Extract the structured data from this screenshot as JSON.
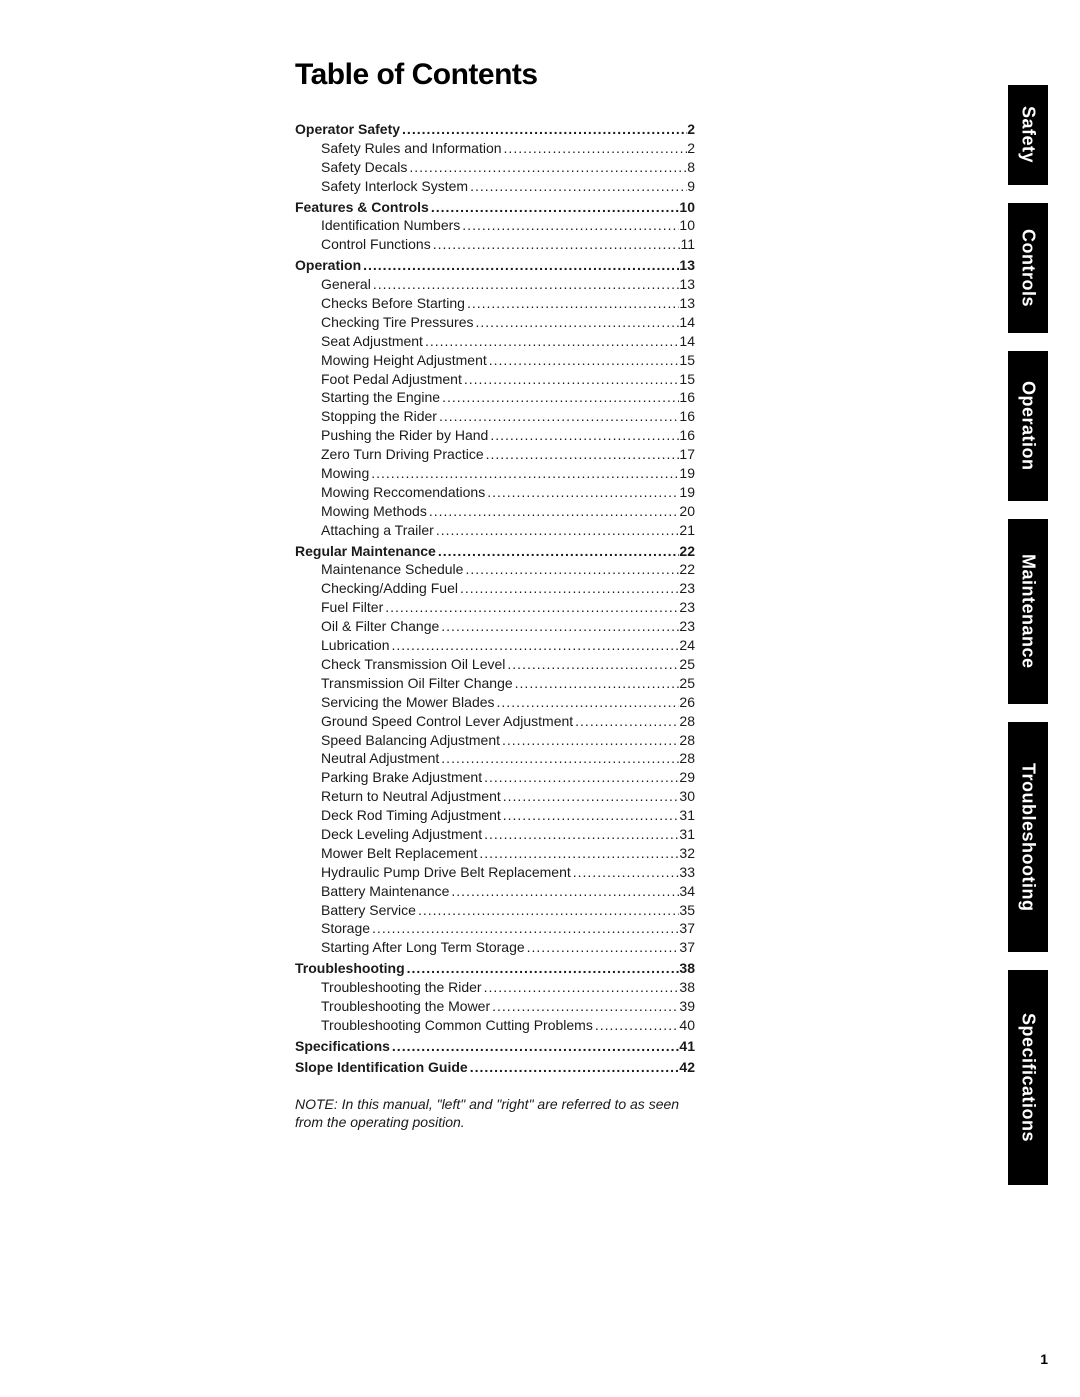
{
  "title": "Table of Contents",
  "note": "NOTE: In this manual, \"left\" and \"right\" are referred to as seen from the operating position.",
  "page_number": "1",
  "tabs": [
    "Safety",
    "Controls",
    "Operation",
    "Maintenance",
    "Troubleshooting",
    "Specifications"
  ],
  "tab_heights": [
    100,
    130,
    150,
    185,
    230,
    215
  ],
  "colors": {
    "tab_bg": "#000000",
    "tab_fg": "#ffffff",
    "text": "#1a1a1a"
  },
  "fonts": {
    "title_size": 30,
    "row_size": 14,
    "tab_size": 18
  },
  "sections": [
    {
      "label": "Operator Safety ",
      "page": "2",
      "items": [
        {
          "label": "Safety Rules and Information ",
          "page": "2"
        },
        {
          "label": "Safety Decals",
          "page": "8"
        },
        {
          "label": "Safety Interlock System",
          "page": "9"
        }
      ]
    },
    {
      "label": "Features & Controls ",
      "page": "10",
      "items": [
        {
          "label": "Identification Numbers ",
          "page": "10"
        },
        {
          "label": "Control Functions ",
          "page": "11"
        }
      ]
    },
    {
      "label": "Operation",
      "page": "13",
      "items": [
        {
          "label": "General ",
          "page": "13"
        },
        {
          "label": "Checks Before Starting ",
          "page": "13"
        },
        {
          "label": "Checking Tire Pressures",
          "page": "14"
        },
        {
          "label": "Seat Adjustment ",
          "page": "14"
        },
        {
          "label": "Mowing Height Adjustment ",
          "page": "15"
        },
        {
          "label": "Foot Pedal Adjustment",
          "page": "15"
        },
        {
          "label": "Starting the Engine ",
          "page": "16"
        },
        {
          "label": "Stopping the Rider",
          "page": "16"
        },
        {
          "label": "Pushing the Rider by Hand",
          "page": "16"
        },
        {
          "label": "Zero Turn Driving Practice",
          "page": "17"
        },
        {
          "label": "Mowing",
          "page": "19"
        },
        {
          "label": "Mowing Reccomendations ",
          "page": "19"
        },
        {
          "label": "Mowing Methods",
          "page": "20"
        },
        {
          "label": "Attaching a Trailer",
          "page": "21"
        }
      ]
    },
    {
      "label": "Regular Maintenance ",
      "page": "22",
      "items": [
        {
          "label": "Maintenance Schedule",
          "page": "22"
        },
        {
          "label": "Checking/Adding Fuel ",
          "page": "23"
        },
        {
          "label": "Fuel Filter ",
          "page": "23"
        },
        {
          "label": "Oil & Filter Change",
          "page": "23"
        },
        {
          "label": "Lubrication",
          "page": "24"
        },
        {
          "label": "Check Transmission Oil Level ",
          "page": "25"
        },
        {
          "label": "Transmission Oil Filter Change ",
          "page": "25"
        },
        {
          "label": "Servicing the Mower Blades ",
          "page": "26"
        },
        {
          "label": "Ground Speed Control Lever Adjustment ",
          "page": "28"
        },
        {
          "label": "Speed Balancing Adjustment",
          "page": "28"
        },
        {
          "label": "Neutral Adjustment",
          "page": "28"
        },
        {
          "label": "Parking Brake Adjustment ",
          "page": "29"
        },
        {
          "label": "Return to Neutral Adjustment",
          "page": "30"
        },
        {
          "label": "Deck Rod Timing Adjustment ",
          "page": "31"
        },
        {
          "label": "Deck Leveling Adjustment ",
          "page": "31"
        },
        {
          "label": "Mower Belt Replacement",
          "page": "32"
        },
        {
          "label": "Hydraulic Pump Drive Belt Replacement ",
          "page": "33"
        },
        {
          "label": "Battery Maintenance",
          "page": "34"
        },
        {
          "label": "Battery Service ",
          "page": "35"
        },
        {
          "label": "Storage ",
          "page": "37"
        },
        {
          "label": "Starting After Long Term Storage",
          "page": "37"
        }
      ]
    },
    {
      "label": "Troubleshooting ",
      "page": "38",
      "items": [
        {
          "label": "Troubleshooting the Rider ",
          "page": "38"
        },
        {
          "label": "Troubleshooting the Mower",
          "page": "39"
        },
        {
          "label": "Troubleshooting Common Cutting Problems",
          "page": "40"
        }
      ]
    },
    {
      "label": "Specifications",
      "page": "41",
      "items": []
    },
    {
      "label": "Slope Identification Guide ",
      "page": "42",
      "items": []
    }
  ]
}
